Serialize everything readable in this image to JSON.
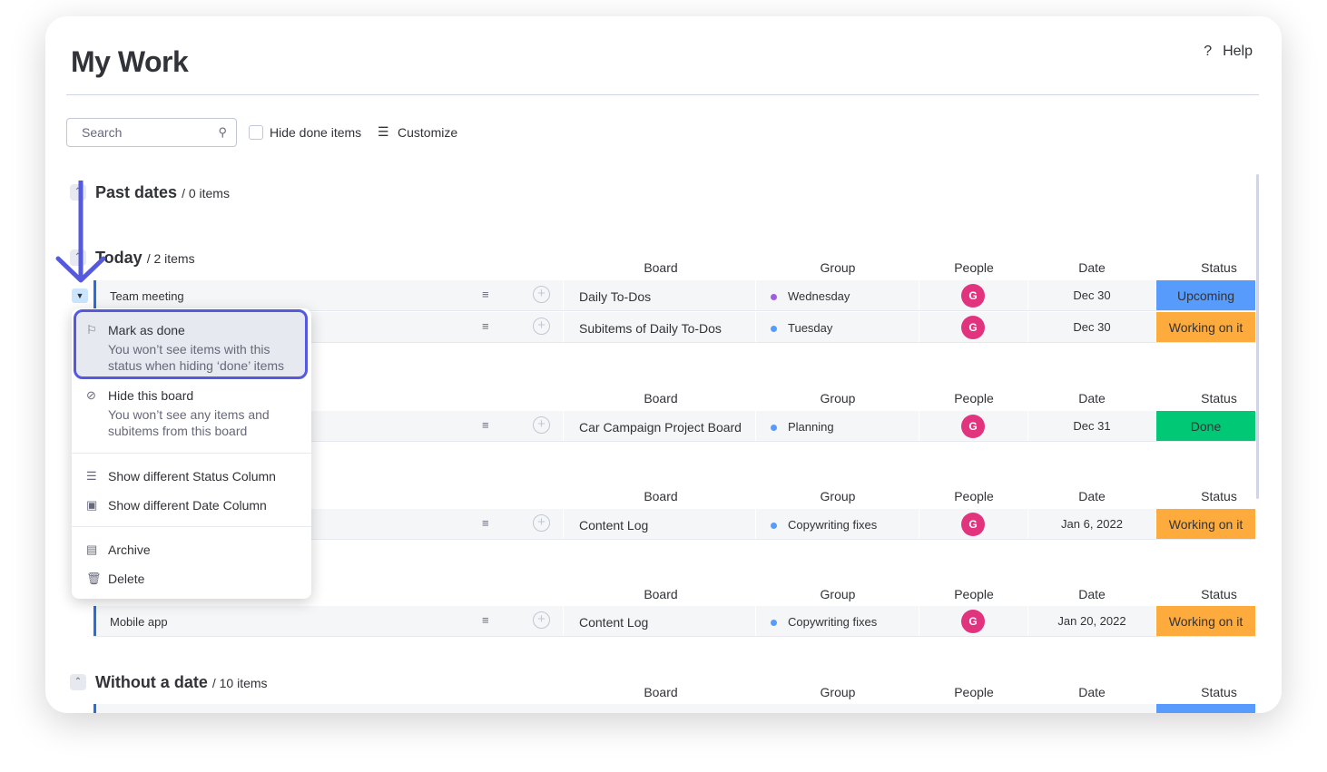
{
  "header": {
    "title": "My Work",
    "help": "Help",
    "help_icon": "?"
  },
  "toolbar": {
    "search_placeholder": "Search",
    "hide_done": "Hide done items",
    "customize": "Customize"
  },
  "columns": {
    "board": "Board",
    "group": "Group",
    "people": "People",
    "date": "Date",
    "status": "Status"
  },
  "sections": [
    {
      "title": "Past dates",
      "count": "/ 0 items"
    },
    {
      "title": "Today",
      "count": "/ 2 items"
    },
    {
      "title": "Without a date",
      "count": "/ 10 items"
    }
  ],
  "rows": [
    {
      "name": "Team meeting",
      "board": "Daily To-Dos",
      "group": "Wednesday",
      "group_color": "#a25ddc",
      "person": "G",
      "date": "Dec 30",
      "status": "Upcoming",
      "status_color": "#579bfc"
    },
    {
      "name": "",
      "board": "Subitems of Daily To-Dos",
      "group": "Tuesday",
      "group_color": "#579bfc",
      "person": "G",
      "date": "Dec 30",
      "status": "Working on it",
      "status_color": "#fdab3d"
    },
    {
      "name": "",
      "board": "Car Campaign Project Board",
      "group": "Planning",
      "group_color": "#579bfc",
      "person": "G",
      "date": "Dec 31",
      "status": "Done",
      "status_color": "#00c875"
    },
    {
      "name": "",
      "board": "Content Log",
      "group": "Copywriting fixes",
      "group_color": "#579bfc",
      "person": "G",
      "date": "Jan 6, 2022",
      "status": "Working on it",
      "status_color": "#fdab3d"
    },
    {
      "name": "Mobile app",
      "board": "Content Log",
      "group": "Copywriting fixes",
      "group_color": "#579bfc",
      "person": "G",
      "date": "Jan 20, 2022",
      "status": "Working on it",
      "status_color": "#fdab3d"
    }
  ],
  "menu": {
    "mark_done": "Mark as done",
    "mark_done_desc": "You won’t see items with this status when hiding ‘done’ items",
    "hide_board": "Hide this board",
    "hide_board_desc": "You won’t see any items and subitems from this board",
    "status_col": "Show different Status Column",
    "date_col": "Show different Date Column",
    "archive": "Archive",
    "delete": "Delete"
  },
  "accent": "#5559df"
}
